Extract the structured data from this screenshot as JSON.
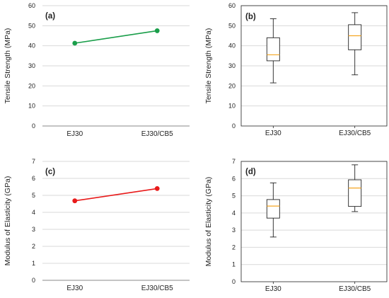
{
  "chart_data": [
    {
      "id": "a",
      "type": "line",
      "panel_label": "(a)",
      "ylabel": "Tensile Strength (MPa)",
      "categories": [
        "EJ30",
        "EJ30/CB5"
      ],
      "values": [
        41.3,
        47.5
      ],
      "ylim": [
        0,
        60
      ],
      "yticks": [
        "0",
        "10",
        "20",
        "30",
        "40",
        "50",
        "60"
      ],
      "color": "#1a9e4a",
      "grid": true
    },
    {
      "id": "b",
      "type": "boxplot",
      "panel_label": "(b)",
      "ylabel": "Tensile Strength (MPa)",
      "categories": [
        "EJ30",
        "EJ30/CB5"
      ],
      "boxes": [
        {
          "min": 21.5,
          "q1": 32.5,
          "median": 35.5,
          "q3": 44.0,
          "max": 53.5
        },
        {
          "min": 25.5,
          "q1": 38.0,
          "median": 45.0,
          "q3": 50.5,
          "max": 56.5
        }
      ],
      "ylim": [
        0,
        60
      ],
      "yticks": [
        "0",
        "10",
        "20",
        "30",
        "40",
        "50",
        "60"
      ],
      "median_color": "#f5a623",
      "grid": true
    },
    {
      "id": "c",
      "type": "line",
      "panel_label": "(c)",
      "ylabel": "Modulus of Elasticity (GPa)",
      "categories": [
        "EJ30",
        "EJ30/CB5"
      ],
      "values": [
        4.68,
        5.4
      ],
      "ylim": [
        0,
        7
      ],
      "yticks": [
        "0",
        "1",
        "2",
        "3",
        "4",
        "5",
        "6",
        "7"
      ],
      "color": "#e81a1a",
      "grid": true
    },
    {
      "id": "d",
      "type": "boxplot",
      "panel_label": "(d)",
      "ylabel": "Modulus of Elasticity (GPa)",
      "categories": [
        "EJ30",
        "EJ30/CB5"
      ],
      "boxes": [
        {
          "min": 2.6,
          "q1": 3.7,
          "median": 4.4,
          "q3": 4.78,
          "max": 5.75
        },
        {
          "min": 4.08,
          "q1": 4.38,
          "median": 5.45,
          "q3": 5.93,
          "max": 6.8
        }
      ],
      "ylim": [
        0,
        7
      ],
      "yticks": [
        "0",
        "1",
        "2",
        "3",
        "4",
        "5",
        "6",
        "7"
      ],
      "median_color": "#f5a623",
      "grid": true
    }
  ]
}
